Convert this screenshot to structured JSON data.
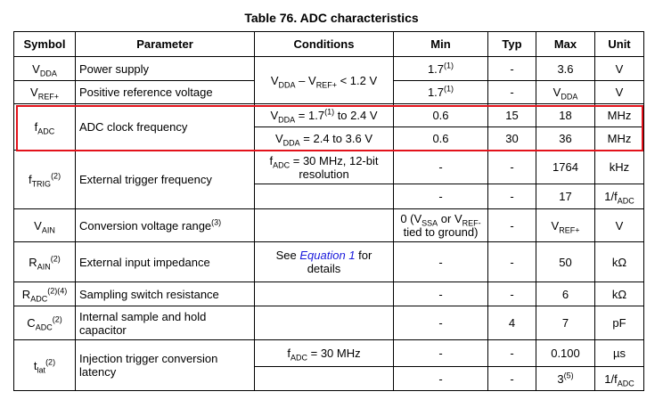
{
  "title": "Table 76. ADC characteristics",
  "table": {
    "header": [
      "Symbol",
      "Parameter",
      "Conditions",
      "Min",
      "Typ",
      "Max",
      "Unit"
    ],
    "rows": [
      {
        "conditions": [
          "V",
          {
            "sub": "DDA"
          },
          " – V",
          {
            "sub": "REF+"
          },
          " < 1.2 V"
        ],
        "lines": [
          {
            "symbol": [
              "V",
              {
                "sub": "DDA"
              }
            ],
            "parameter": "Power supply",
            "min": [
              "1.7",
              {
                "sup": "(1)"
              }
            ],
            "typ": "-",
            "max": "3.6",
            "unit": "V"
          },
          {
            "symbol": [
              "V",
              {
                "sub": "REF+"
              }
            ],
            "parameter": "Positive reference voltage",
            "min": [
              "1.7",
              {
                "sup": "(1)"
              }
            ],
            "typ": "-",
            "max": [
              "V",
              {
                "sub": "DDA"
              }
            ],
            "unit": "V"
          }
        ]
      },
      {
        "symbol": [
          "f",
          {
            "sub": "ADC"
          }
        ],
        "parameter": "ADC clock frequency",
        "highlighted": true,
        "lines": [
          {
            "conditions": [
              "V",
              {
                "sub": "DDA"
              },
              " = 1.7",
              {
                "sup": "(1)"
              },
              " to 2.4 V"
            ],
            "min": "0.6",
            "typ": "15",
            "max": "18",
            "unit": "MHz"
          },
          {
            "conditions": [
              "V",
              {
                "sub": "DDA"
              },
              " = 2.4 to 3.6 V"
            ],
            "min": "0.6",
            "typ": "30",
            "max": "36",
            "unit": "MHz"
          }
        ]
      },
      {
        "symbol": [
          "f",
          {
            "sub": "TRIG"
          },
          {
            "sup": "(2)"
          }
        ],
        "parameter": "External trigger frequency",
        "lines": [
          {
            "conditions": [
              "f",
              {
                "sub": "ADC"
              },
              " = 30 MHz, 12-bit resolution"
            ],
            "min": "-",
            "typ": "-",
            "max": "1764",
            "unit": "kHz"
          },
          {
            "min": "-",
            "typ": "-",
            "max": "17",
            "unit": [
              "1/f",
              {
                "sub": "ADC"
              }
            ]
          }
        ]
      },
      {
        "lines": [
          {
            "symbol": [
              "V",
              {
                "sub": "AIN"
              }
            ],
            "parameter": [
              "Conversion voltage range",
              {
                "sup": "(3)"
              }
            ],
            "min": [
              "0 (V",
              {
                "sub": "SSA"
              },
              " or V",
              {
                "sub": "REF-"
              },
              " tied to ground)"
            ],
            "typ": "-",
            "max": [
              "V",
              {
                "sub": "REF+"
              }
            ],
            "unit": "V"
          }
        ]
      },
      {
        "lines": [
          {
            "symbol": [
              "R",
              {
                "sub": "AIN"
              },
              {
                "sup": "(2)"
              }
            ],
            "parameter": "External input impedance",
            "conditions": [
              "See ",
              {
                "link": "Equation 1"
              },
              " for details"
            ],
            "min": "-",
            "typ": "-",
            "max": "50",
            "unit": "kΩ"
          }
        ]
      },
      {
        "lines": [
          {
            "symbol": [
              "R",
              {
                "sub": "ADC"
              },
              {
                "sup": "(2)(4)"
              }
            ],
            "parameter": "Sampling switch resistance",
            "min": "-",
            "typ": "-",
            "max": "6",
            "unit": "kΩ"
          }
        ]
      },
      {
        "lines": [
          {
            "symbol": [
              "C",
              {
                "sub": "ADC"
              },
              {
                "sup": "(2)"
              }
            ],
            "parameter": "Internal sample and hold capacitor",
            "min": "-",
            "typ": "4",
            "max": "7",
            "unit": "pF"
          }
        ]
      },
      {
        "symbol": [
          "t",
          {
            "sub": "lat"
          },
          {
            "sup": "(2)"
          }
        ],
        "parameter": "Injection trigger conversion latency",
        "lines": [
          {
            "conditions": [
              "f",
              {
                "sub": "ADC"
              },
              " = 30 MHz"
            ],
            "min": "-",
            "typ": "-",
            "max": "0.100",
            "unit": "µs"
          },
          {
            "min": "-",
            "typ": "-",
            "max": [
              "3",
              {
                "sup": "(5)"
              }
            ],
            "unit": [
              "1/f",
              {
                "sub": "ADC"
              }
            ]
          }
        ]
      }
    ]
  }
}
